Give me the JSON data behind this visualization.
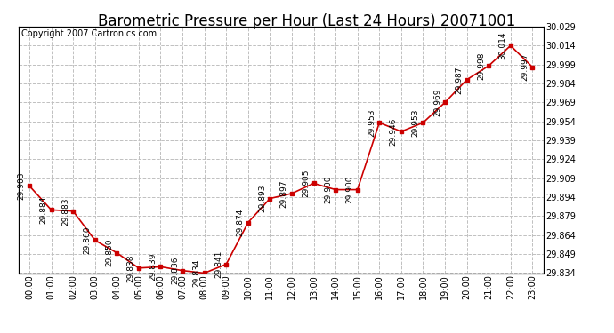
{
  "title": "Barometric Pressure per Hour (Last 24 Hours) 20071001",
  "copyright": "Copyright 2007 Cartronics.com",
  "hours": [
    "00:00",
    "01:00",
    "02:00",
    "03:00",
    "04:00",
    "05:00",
    "06:00",
    "07:00",
    "08:00",
    "09:00",
    "10:00",
    "11:00",
    "12:00",
    "13:00",
    "14:00",
    "15:00",
    "16:00",
    "17:00",
    "18:00",
    "19:00",
    "20:00",
    "21:00",
    "22:00",
    "23:00"
  ],
  "values": [
    29.903,
    29.884,
    29.883,
    29.86,
    29.85,
    29.838,
    29.839,
    29.836,
    29.834,
    29.841,
    29.874,
    29.893,
    29.897,
    29.905,
    29.9,
    29.9,
    29.953,
    29.946,
    29.953,
    29.969,
    29.987,
    29.998,
    30.014,
    29.997
  ],
  "ylim_min": 29.834,
  "ylim_max": 30.029,
  "ytick_step": 0.015,
  "line_color": "#cc0000",
  "marker_color": "#cc0000",
  "bg_color": "#ffffff",
  "grid_color": "#c0c0c0",
  "title_fontsize": 12,
  "label_fontsize": 7,
  "annotation_fontsize": 6.5,
  "copyright_fontsize": 7
}
